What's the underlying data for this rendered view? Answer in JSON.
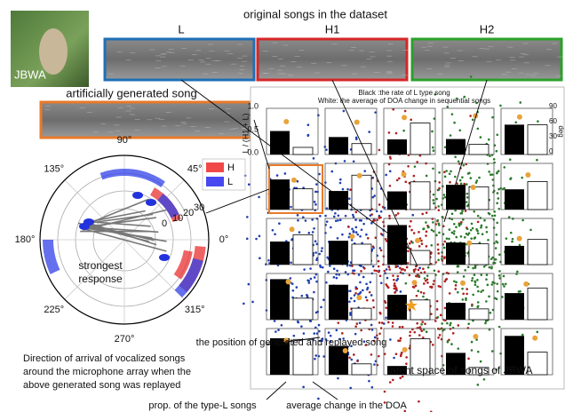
{
  "header": {
    "title": "original songs in the dataset",
    "labels": [
      "L",
      "H1",
      "H2"
    ]
  },
  "photo_label": "JBWA",
  "generated": {
    "title": "artificially generated song"
  },
  "polar": {
    "angle_labels": [
      "90°",
      "45°",
      "0°",
      "315°",
      "270°",
      "225°",
      "180°",
      "135°"
    ],
    "radial_labels": [
      "0",
      "10",
      "20",
      "30"
    ],
    "legend": [
      "H",
      "L"
    ],
    "annotation": [
      "strongest",
      "response"
    ]
  },
  "latent": {
    "title_lines": [
      "Black :the rate of L type song",
      "White: the average of DOA change in sequential songs"
    ],
    "y_label": "L / (H1 + L)",
    "y_ticks": [
      "1.0",
      "0.5",
      "0.0"
    ],
    "y2_label": "deg",
    "y2_ticks": [
      "90",
      "60",
      "30",
      "0"
    ],
    "caption": "latent space of songs of JBWA"
  },
  "annotations": {
    "position": "the position of generated and replayed song",
    "doa": [
      "Direction of arrival of vocalized songs",
      "around the microphone array when the",
      "above generated song was replayed"
    ],
    "prop": "prop. of the type-L songs",
    "avg": "average change in the DOA"
  }
}
